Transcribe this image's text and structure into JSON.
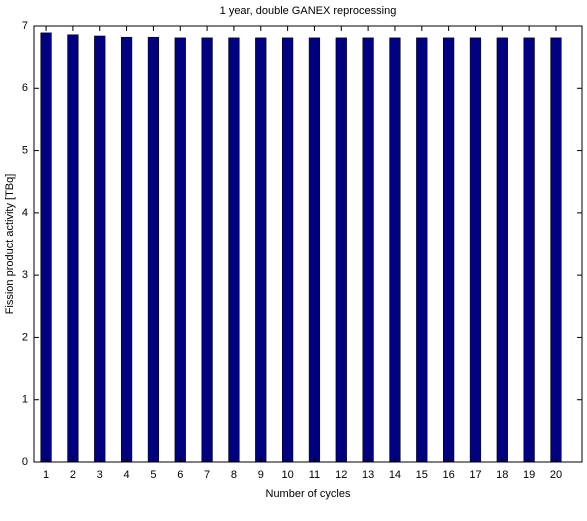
{
  "chart_data": {
    "type": "bar",
    "title": "1 year, double GANEX reprocessing",
    "xlabel": "Number of cycles",
    "ylabel": "Fission product activity [TBq]",
    "x": [
      1,
      2,
      3,
      4,
      5,
      6,
      7,
      8,
      9,
      10,
      11,
      12,
      13,
      14,
      15,
      16,
      17,
      18,
      19,
      20
    ],
    "values": [
      6.89,
      6.86,
      6.84,
      6.82,
      6.82,
      6.81,
      6.81,
      6.81,
      6.81,
      6.81,
      6.81,
      6.81,
      6.81,
      6.81,
      6.81,
      6.81,
      6.81,
      6.81,
      6.81,
      6.81
    ],
    "color": "#000080",
    "xlim": [
      0.55,
      20.97
    ],
    "xticks": [
      1,
      2,
      3,
      4,
      5,
      6,
      7,
      8,
      9,
      10,
      11,
      12,
      13,
      14,
      15,
      16,
      17,
      18,
      19,
      20
    ],
    "ylim": [
      0,
      7
    ],
    "yticks": [
      0,
      1,
      2,
      3,
      4,
      5,
      6,
      7
    ],
    "grid": false
  }
}
